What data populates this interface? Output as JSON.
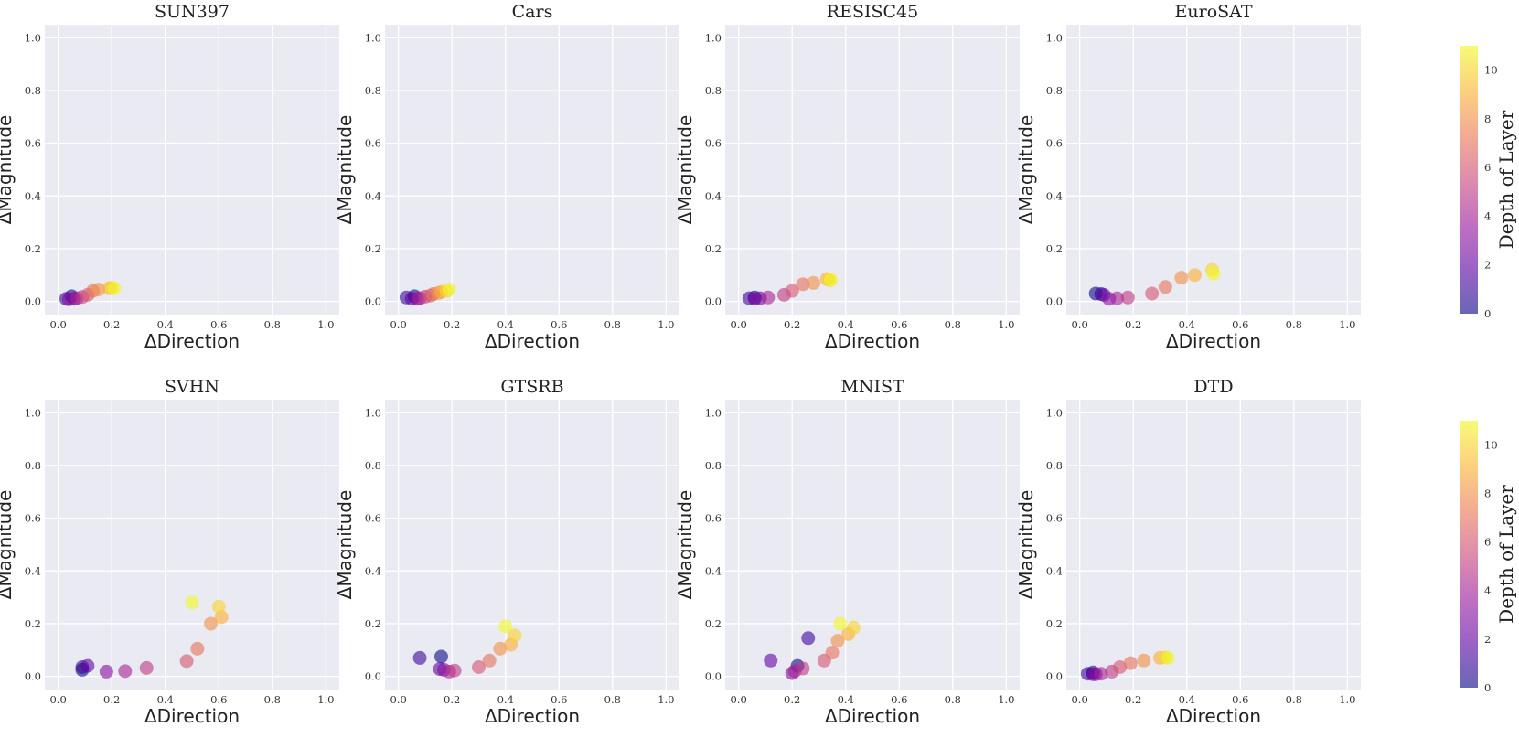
{
  "chart_data": [
    {
      "type": "scatter",
      "title": "SUN397",
      "xlabel": "ΔDirection",
      "ylabel": "ΔMagnitude",
      "xlim": [
        -0.05,
        1.05
      ],
      "ylim": [
        -0.05,
        1.05
      ],
      "ticks": [
        "0.0",
        "0.2",
        "0.4",
        "0.6",
        "0.8",
        "1.0"
      ],
      "points": [
        {
          "layer": 0,
          "x": 0.05,
          "y": 0.02
        },
        {
          "layer": 1,
          "x": 0.03,
          "y": 0.01
        },
        {
          "layer": 2,
          "x": 0.06,
          "y": 0.01
        },
        {
          "layer": 3,
          "x": 0.04,
          "y": 0.008
        },
        {
          "layer": 4,
          "x": 0.07,
          "y": 0.012
        },
        {
          "layer": 5,
          "x": 0.09,
          "y": 0.017
        },
        {
          "layer": 6,
          "x": 0.11,
          "y": 0.025
        },
        {
          "layer": 7,
          "x": 0.13,
          "y": 0.04
        },
        {
          "layer": 8,
          "x": 0.15,
          "y": 0.045
        },
        {
          "layer": 9,
          "x": 0.19,
          "y": 0.05
        },
        {
          "layer": 10,
          "x": 0.2,
          "y": 0.052
        },
        {
          "layer": 11,
          "x": 0.21,
          "y": 0.05
        }
      ]
    },
    {
      "type": "scatter",
      "title": "Cars",
      "xlabel": "ΔDirection",
      "ylabel": "ΔMagnitude",
      "xlim": [
        -0.05,
        1.05
      ],
      "ylim": [
        -0.05,
        1.05
      ],
      "ticks": [
        "0.0",
        "0.2",
        "0.4",
        "0.6",
        "0.8",
        "1.0"
      ],
      "points": [
        {
          "layer": 0,
          "x": 0.06,
          "y": 0.02
        },
        {
          "layer": 1,
          "x": 0.03,
          "y": 0.015
        },
        {
          "layer": 2,
          "x": 0.05,
          "y": 0.01
        },
        {
          "layer": 3,
          "x": 0.07,
          "y": 0.01
        },
        {
          "layer": 4,
          "x": 0.08,
          "y": 0.012
        },
        {
          "layer": 5,
          "x": 0.1,
          "y": 0.018
        },
        {
          "layer": 6,
          "x": 0.12,
          "y": 0.022
        },
        {
          "layer": 7,
          "x": 0.13,
          "y": 0.028
        },
        {
          "layer": 8,
          "x": 0.15,
          "y": 0.032
        },
        {
          "layer": 9,
          "x": 0.16,
          "y": 0.036
        },
        {
          "layer": 10,
          "x": 0.18,
          "y": 0.04
        },
        {
          "layer": 11,
          "x": 0.19,
          "y": 0.045
        }
      ]
    },
    {
      "type": "scatter",
      "title": "RESISC45",
      "xlabel": "ΔDirection",
      "ylabel": "ΔMagnitude",
      "xlim": [
        -0.05,
        1.05
      ],
      "ylim": [
        -0.05,
        1.05
      ],
      "ticks": [
        "0.0",
        "0.2",
        "0.4",
        "0.6",
        "0.8",
        "1.0"
      ],
      "points": [
        {
          "layer": 0,
          "x": 0.06,
          "y": 0.015
        },
        {
          "layer": 1,
          "x": 0.04,
          "y": 0.012
        },
        {
          "layer": 2,
          "x": 0.08,
          "y": 0.012
        },
        {
          "layer": 3,
          "x": 0.06,
          "y": 0.01
        },
        {
          "layer": 4,
          "x": 0.11,
          "y": 0.015
        },
        {
          "layer": 5,
          "x": 0.17,
          "y": 0.025
        },
        {
          "layer": 6,
          "x": 0.2,
          "y": 0.04
        },
        {
          "layer": 7,
          "x": 0.24,
          "y": 0.065
        },
        {
          "layer": 8,
          "x": 0.28,
          "y": 0.07
        },
        {
          "layer": 9,
          "x": 0.33,
          "y": 0.085
        },
        {
          "layer": 10,
          "x": 0.34,
          "y": 0.08
        },
        {
          "layer": 11,
          "x": 0.345,
          "y": 0.082
        }
      ]
    },
    {
      "type": "scatter",
      "title": "EuroSAT",
      "xlabel": "ΔDirection",
      "ylabel": "ΔMagnitude",
      "xlim": [
        -0.05,
        1.05
      ],
      "ylim": [
        -0.05,
        1.05
      ],
      "ticks": [
        "0.0",
        "0.2",
        "0.4",
        "0.6",
        "0.8",
        "1.0"
      ],
      "points": [
        {
          "layer": 0,
          "x": 0.06,
          "y": 0.03
        },
        {
          "layer": 1,
          "x": 0.08,
          "y": 0.028
        },
        {
          "layer": 2,
          "x": 0.09,
          "y": 0.025
        },
        {
          "layer": 3,
          "x": 0.11,
          "y": 0.01
        },
        {
          "layer": 4,
          "x": 0.14,
          "y": 0.012
        },
        {
          "layer": 5,
          "x": 0.18,
          "y": 0.015
        },
        {
          "layer": 6,
          "x": 0.27,
          "y": 0.03
        },
        {
          "layer": 7,
          "x": 0.32,
          "y": 0.055
        },
        {
          "layer": 8,
          "x": 0.38,
          "y": 0.09
        },
        {
          "layer": 9,
          "x": 0.43,
          "y": 0.1
        },
        {
          "layer": 10,
          "x": 0.495,
          "y": 0.12
        },
        {
          "layer": 11,
          "x": 0.5,
          "y": 0.105
        }
      ]
    },
    {
      "type": "scatter",
      "title": "SVHN",
      "xlabel": "ΔDirection",
      "ylabel": "ΔMagnitude",
      "xlim": [
        -0.05,
        1.05
      ],
      "ylim": [
        -0.05,
        1.05
      ],
      "ticks": [
        "0.0",
        "0.2",
        "0.4",
        "0.6",
        "0.8",
        "1.0"
      ],
      "points": [
        {
          "layer": 0,
          "x": 0.09,
          "y": 0.025
        },
        {
          "layer": 1,
          "x": 0.09,
          "y": 0.035
        },
        {
          "layer": 2,
          "x": 0.11,
          "y": 0.04
        },
        {
          "layer": 3,
          "x": 0.18,
          "y": 0.018
        },
        {
          "layer": 4,
          "x": 0.25,
          "y": 0.02
        },
        {
          "layer": 5,
          "x": 0.33,
          "y": 0.032
        },
        {
          "layer": 6,
          "x": 0.48,
          "y": 0.058
        },
        {
          "layer": 7,
          "x": 0.52,
          "y": 0.105
        },
        {
          "layer": 8,
          "x": 0.57,
          "y": 0.2
        },
        {
          "layer": 9,
          "x": 0.61,
          "y": 0.225
        },
        {
          "layer": 10,
          "x": 0.6,
          "y": 0.265
        },
        {
          "layer": 11,
          "x": 0.5,
          "y": 0.28
        }
      ]
    },
    {
      "type": "scatter",
      "title": "GTSRB",
      "xlabel": "ΔDirection",
      "ylabel": "ΔMagnitude",
      "xlim": [
        -0.05,
        1.05
      ],
      "ylim": [
        -0.05,
        1.05
      ],
      "ticks": [
        "0.0",
        "0.2",
        "0.4",
        "0.6",
        "0.8",
        "1.0"
      ],
      "points": [
        {
          "layer": 0,
          "x": 0.16,
          "y": 0.075
        },
        {
          "layer": 1,
          "x": 0.08,
          "y": 0.07
        },
        {
          "layer": 2,
          "x": 0.155,
          "y": 0.028
        },
        {
          "layer": 3,
          "x": 0.17,
          "y": 0.025
        },
        {
          "layer": 4,
          "x": 0.19,
          "y": 0.018
        },
        {
          "layer": 5,
          "x": 0.21,
          "y": 0.022
        },
        {
          "layer": 6,
          "x": 0.3,
          "y": 0.035
        },
        {
          "layer": 7,
          "x": 0.34,
          "y": 0.06
        },
        {
          "layer": 8,
          "x": 0.38,
          "y": 0.105
        },
        {
          "layer": 9,
          "x": 0.42,
          "y": 0.12
        },
        {
          "layer": 10,
          "x": 0.435,
          "y": 0.155
        },
        {
          "layer": 11,
          "x": 0.4,
          "y": 0.19
        }
      ]
    },
    {
      "type": "scatter",
      "title": "MNIST",
      "xlabel": "ΔDirection",
      "ylabel": "ΔMagnitude",
      "xlim": [
        -0.05,
        1.05
      ],
      "ylim": [
        -0.05,
        1.05
      ],
      "ticks": [
        "0.0",
        "0.2",
        "0.4",
        "0.6",
        "0.8",
        "1.0"
      ],
      "points": [
        {
          "layer": 0,
          "x": 0.22,
          "y": 0.04
        },
        {
          "layer": 1,
          "x": 0.26,
          "y": 0.145
        },
        {
          "layer": 2,
          "x": 0.12,
          "y": 0.06
        },
        {
          "layer": 3,
          "x": 0.2,
          "y": 0.012
        },
        {
          "layer": 4,
          "x": 0.21,
          "y": 0.02
        },
        {
          "layer": 5,
          "x": 0.24,
          "y": 0.03
        },
        {
          "layer": 6,
          "x": 0.32,
          "y": 0.06
        },
        {
          "layer": 7,
          "x": 0.35,
          "y": 0.09
        },
        {
          "layer": 8,
          "x": 0.37,
          "y": 0.135
        },
        {
          "layer": 9,
          "x": 0.41,
          "y": 0.16
        },
        {
          "layer": 10,
          "x": 0.43,
          "y": 0.185
        },
        {
          "layer": 11,
          "x": 0.38,
          "y": 0.2
        }
      ]
    },
    {
      "type": "scatter",
      "title": "DTD",
      "xlabel": "ΔDirection",
      "ylabel": "ΔMagnitude",
      "xlim": [
        -0.05,
        1.05
      ],
      "ylim": [
        -0.05,
        1.05
      ],
      "ticks": [
        "0.0",
        "0.2",
        "0.4",
        "0.6",
        "0.8",
        "1.0"
      ],
      "points": [
        {
          "layer": 0,
          "x": 0.05,
          "y": 0.015
        },
        {
          "layer": 1,
          "x": 0.03,
          "y": 0.01
        },
        {
          "layer": 2,
          "x": 0.05,
          "y": 0.008
        },
        {
          "layer": 3,
          "x": 0.06,
          "y": 0.008
        },
        {
          "layer": 4,
          "x": 0.08,
          "y": 0.01
        },
        {
          "layer": 5,
          "x": 0.12,
          "y": 0.018
        },
        {
          "layer": 6,
          "x": 0.15,
          "y": 0.035
        },
        {
          "layer": 7,
          "x": 0.19,
          "y": 0.05
        },
        {
          "layer": 8,
          "x": 0.24,
          "y": 0.06
        },
        {
          "layer": 9,
          "x": 0.3,
          "y": 0.07
        },
        {
          "layer": 10,
          "x": 0.32,
          "y": 0.072
        },
        {
          "layer": 11,
          "x": 0.33,
          "y": 0.07
        }
      ]
    }
  ],
  "colorbar": {
    "label": "Depth of Layer",
    "min": 0,
    "max": 11,
    "ticks": [
      "0",
      "2",
      "4",
      "6",
      "8",
      "10"
    ],
    "tick_values": [
      0,
      2,
      4,
      6,
      8,
      10
    ],
    "colormap": "plasma",
    "colors": [
      "#0d0887",
      "#5b02a3",
      "#9a179b",
      "#cb4678",
      "#eb7852",
      "#fbb32f",
      "#f0f921"
    ]
  },
  "style": {
    "panel_background": "#eaeaf2",
    "grid_color": "#ffffff",
    "point_alpha": 0.6
  }
}
